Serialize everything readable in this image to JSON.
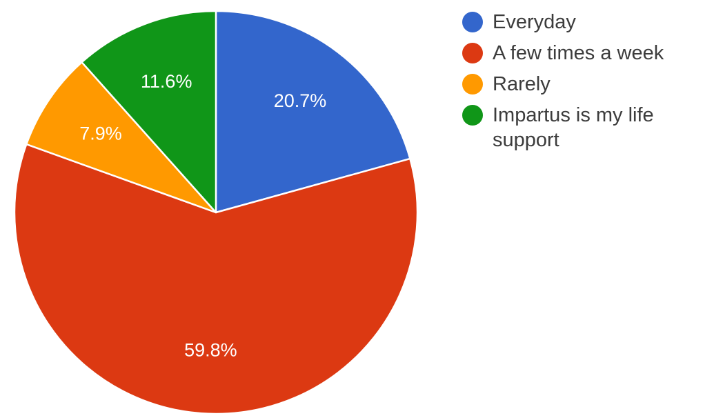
{
  "chart_data": {
    "type": "pie",
    "title": "",
    "legend_position": "right",
    "start_angle_deg": 90,
    "direction": "clockwise",
    "slices": [
      {
        "label": "Everyday",
        "value": 20.7,
        "display": "20.7%",
        "color": "#3366cc"
      },
      {
        "label": "A few times a week",
        "value": 59.8,
        "display": "59.8%",
        "color": "#dc3912"
      },
      {
        "label": "Rarely",
        "value": 7.9,
        "display": "7.9%",
        "color": "#ff9900"
      },
      {
        "label": "Impartus is my life support",
        "value": 11.6,
        "display": "11.6%",
        "color": "#109618"
      }
    ]
  }
}
